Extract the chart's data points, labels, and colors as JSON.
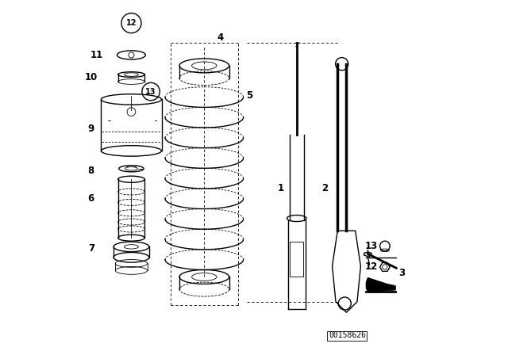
{
  "bg_color": "#ffffff",
  "line_color": "#000000",
  "diagram_code": "00158626"
}
